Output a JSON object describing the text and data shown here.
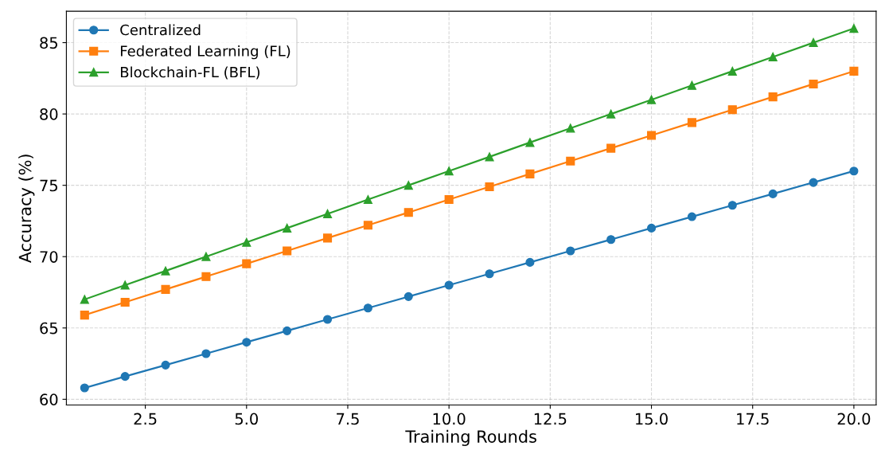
{
  "chart_data": {
    "type": "line",
    "xlabel": "Training Rounds",
    "ylabel": "Accuracy (%)",
    "x": [
      1,
      2,
      3,
      4,
      5,
      6,
      7,
      8,
      9,
      10,
      11,
      12,
      13,
      14,
      15,
      16,
      17,
      18,
      19,
      20
    ],
    "series": [
      {
        "name": "Centralized",
        "color": "#1f77b4",
        "marker": "circle",
        "values": [
          60.8,
          61.6,
          62.4,
          63.2,
          64.0,
          64.8,
          65.6,
          66.4,
          67.2,
          68.0,
          68.8,
          69.6,
          70.4,
          71.2,
          72.0,
          72.8,
          73.6,
          74.4,
          75.2,
          76.0
        ]
      },
      {
        "name": "Federated Learning (FL)",
        "color": "#ff7f0e",
        "marker": "square",
        "values": [
          65.9,
          66.8,
          67.7,
          68.6,
          69.5,
          70.4,
          71.3,
          72.2,
          73.1,
          74.0,
          74.9,
          75.8,
          76.7,
          77.6,
          78.5,
          79.4,
          80.3,
          81.2,
          82.1,
          83.0
        ]
      },
      {
        "name": "Blockchain-FL (BFL)",
        "color": "#2ca02c",
        "marker": "triangle",
        "values": [
          67,
          68,
          69,
          70,
          71,
          72,
          73,
          74,
          75,
          76,
          77,
          78,
          79,
          80,
          81,
          82,
          83,
          84,
          85,
          86
        ]
      }
    ],
    "xlim": [
      0.55,
      20.55
    ],
    "xticks": [
      {
        "value": 2.5,
        "label": "2.5"
      },
      {
        "value": 5,
        "label": "5.0"
      },
      {
        "value": 7.5,
        "label": "7.5"
      },
      {
        "value": 10,
        "label": "10.0"
      },
      {
        "value": 12.5,
        "label": "12.5"
      },
      {
        "value": 15,
        "label": "15.0"
      },
      {
        "value": 17.5,
        "label": "17.5"
      },
      {
        "value": 20,
        "label": "20.0"
      }
    ],
    "ylim": [
      59.6,
      87.2
    ],
    "yticks": [
      60,
      65,
      70,
      75,
      80,
      85
    ],
    "grid": true,
    "legend": "top left",
    "line_style": "solid"
  }
}
